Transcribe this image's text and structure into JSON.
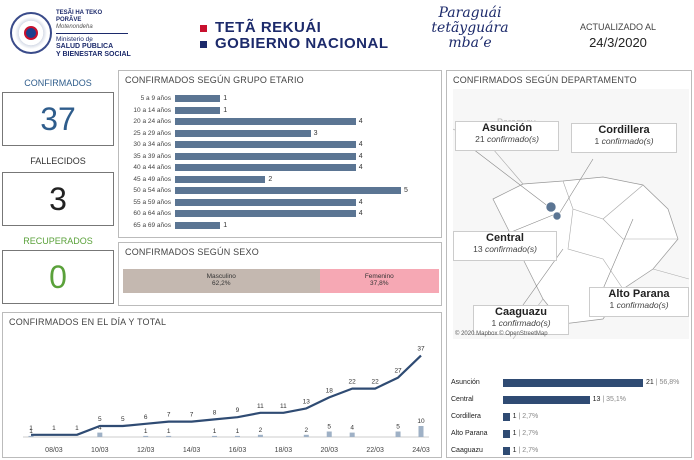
{
  "header": {
    "gov_lines": [
      "TESÃI HA TEKO",
      "PORÃVE",
      "Motenondeha",
      "Ministerio de",
      "SALUD PÚBLICA",
      "Y BIENESTAR SOCIAL"
    ],
    "tete_line1": "TETÃ REKUÁI",
    "tete_line2": "GOBIERNO NACIONAL",
    "script_logo": "Paraguái tetãyguára mbaʼe",
    "updated_label": "ACTUALIZADO AL",
    "updated_date": "24/3/2020"
  },
  "metrics": {
    "confirmados_label": "CONFIRMADOS",
    "confirmados_value": "37",
    "fallecidos_label": "FALLECIDOS",
    "fallecidos_value": "3",
    "recuperados_label": "RECUPERADOS",
    "recuperados_value": "0"
  },
  "colors": {
    "confirmed_blue": "#2f5d8c",
    "recovered_green": "#5aa13a",
    "bar_slate": "#5b7593",
    "male": "#c4b8b0",
    "female": "#f6a8b4",
    "line": "#2f4b73"
  },
  "age_panel": {
    "title": "CONFIRMADOS SEGÚN GRUPO ETARIO",
    "rows": [
      {
        "label": "5 a 9 años",
        "value": 1
      },
      {
        "label": "10 a 14 años",
        "value": 1
      },
      {
        "label": "20 a 24 años",
        "value": 4
      },
      {
        "label": "25 a 29 años",
        "value": 3
      },
      {
        "label": "30 a 34 años",
        "value": 4
      },
      {
        "label": "35 a 39 años",
        "value": 4
      },
      {
        "label": "40 a 44 años",
        "value": 4
      },
      {
        "label": "45 a 49 años",
        "value": 2
      },
      {
        "label": "50 a 54 años",
        "value": 5
      },
      {
        "label": "55 a 59 años",
        "value": 4
      },
      {
        "label": "60 a 64 años",
        "value": 4
      },
      {
        "label": "65 a 69 años",
        "value": 1
      }
    ]
  },
  "sex_panel": {
    "title": "CONFIRMADOS SEGÚN SEXO",
    "male_label": "Masculino",
    "male_pct": "62,2%",
    "male_share": 0.622,
    "female_label": "Femenino",
    "female_pct": "37,8%",
    "female_share": 0.378
  },
  "dept_panel": {
    "title": "CONFIRMADOS SEGÚN DEPARTAMENTO",
    "map_background_label": "Paraguay",
    "callouts": [
      {
        "name": "Asunción",
        "count": "21",
        "unit": "confirmado(s)"
      },
      {
        "name": "Cordillera",
        "count": "1",
        "unit": "confirmado(s)"
      },
      {
        "name": "Central",
        "count": "13",
        "unit": "confirmado(s)"
      },
      {
        "name": "Alto Parana",
        "count": "1",
        "unit": "confirmado(s)"
      },
      {
        "name": "Caaguazu",
        "count": "1",
        "unit": "confirmado(s)"
      }
    ],
    "map_credit": "© 2020 Mapbox © OpenStreetMap",
    "bars": [
      {
        "label": "Asunción",
        "value": 21,
        "pct": "56,8%"
      },
      {
        "label": "Central",
        "value": 13,
        "pct": "35,1%"
      },
      {
        "label": "Cordillera",
        "value": 1,
        "pct": "2,7%"
      },
      {
        "label": "Alto Parana",
        "value": 1,
        "pct": "2,7%"
      },
      {
        "label": "Caaguazu",
        "value": 1,
        "pct": "2,7%"
      }
    ]
  },
  "timeline_panel": {
    "title": "CONFIRMADOS EN EL DÍA Y TOTAL"
  },
  "chart_data": {
    "type": "line",
    "title": "CONFIRMADOS EN EL DÍA Y TOTAL",
    "x": [
      "07/03",
      "08/03",
      "09/03",
      "10/03",
      "11/03",
      "12/03",
      "13/03",
      "14/03",
      "15/03",
      "16/03",
      "17/03",
      "18/03",
      "19/03",
      "20/03",
      "21/03",
      "22/03",
      "23/03",
      "24/03"
    ],
    "x_tick_labels": [
      "08/03",
      "10/03",
      "12/03",
      "14/03",
      "16/03",
      "18/03",
      "20/03",
      "22/03",
      "24/03"
    ],
    "series": [
      {
        "values": [
          1,
          1,
          1,
          5,
          5,
          6,
          7,
          7,
          8,
          9,
          11,
          11,
          13,
          18,
          22,
          22,
          27,
          37
        ]
      },
      {
        "values": [
          1,
          0,
          0,
          4,
          0,
          1,
          1,
          0,
          1,
          1,
          2,
          0,
          2,
          5,
          4,
          0,
          5,
          10
        ]
      }
    ],
    "series_types": [
      "line",
      "bar"
    ]
  }
}
